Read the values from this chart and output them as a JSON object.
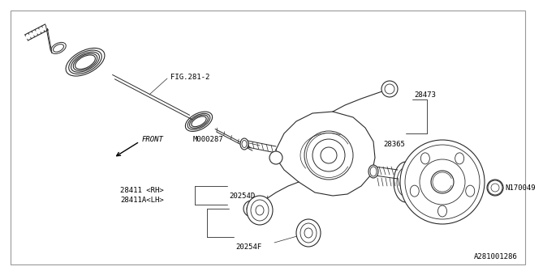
{
  "bg_color": "#ffffff",
  "lc": "#2a2a2a",
  "part_number": "A281001286",
  "fig_label": "FIG.281-2",
  "front_label": "FRONT",
  "labels": {
    "m000287": "M000287",
    "28473": "28473",
    "28365": "28365",
    "28411rh": "28411 <RH>",
    "28411alh": "28411A<LH>",
    "20254d": "20254D",
    "20254f": "20254F",
    "n170049": "N170049"
  }
}
